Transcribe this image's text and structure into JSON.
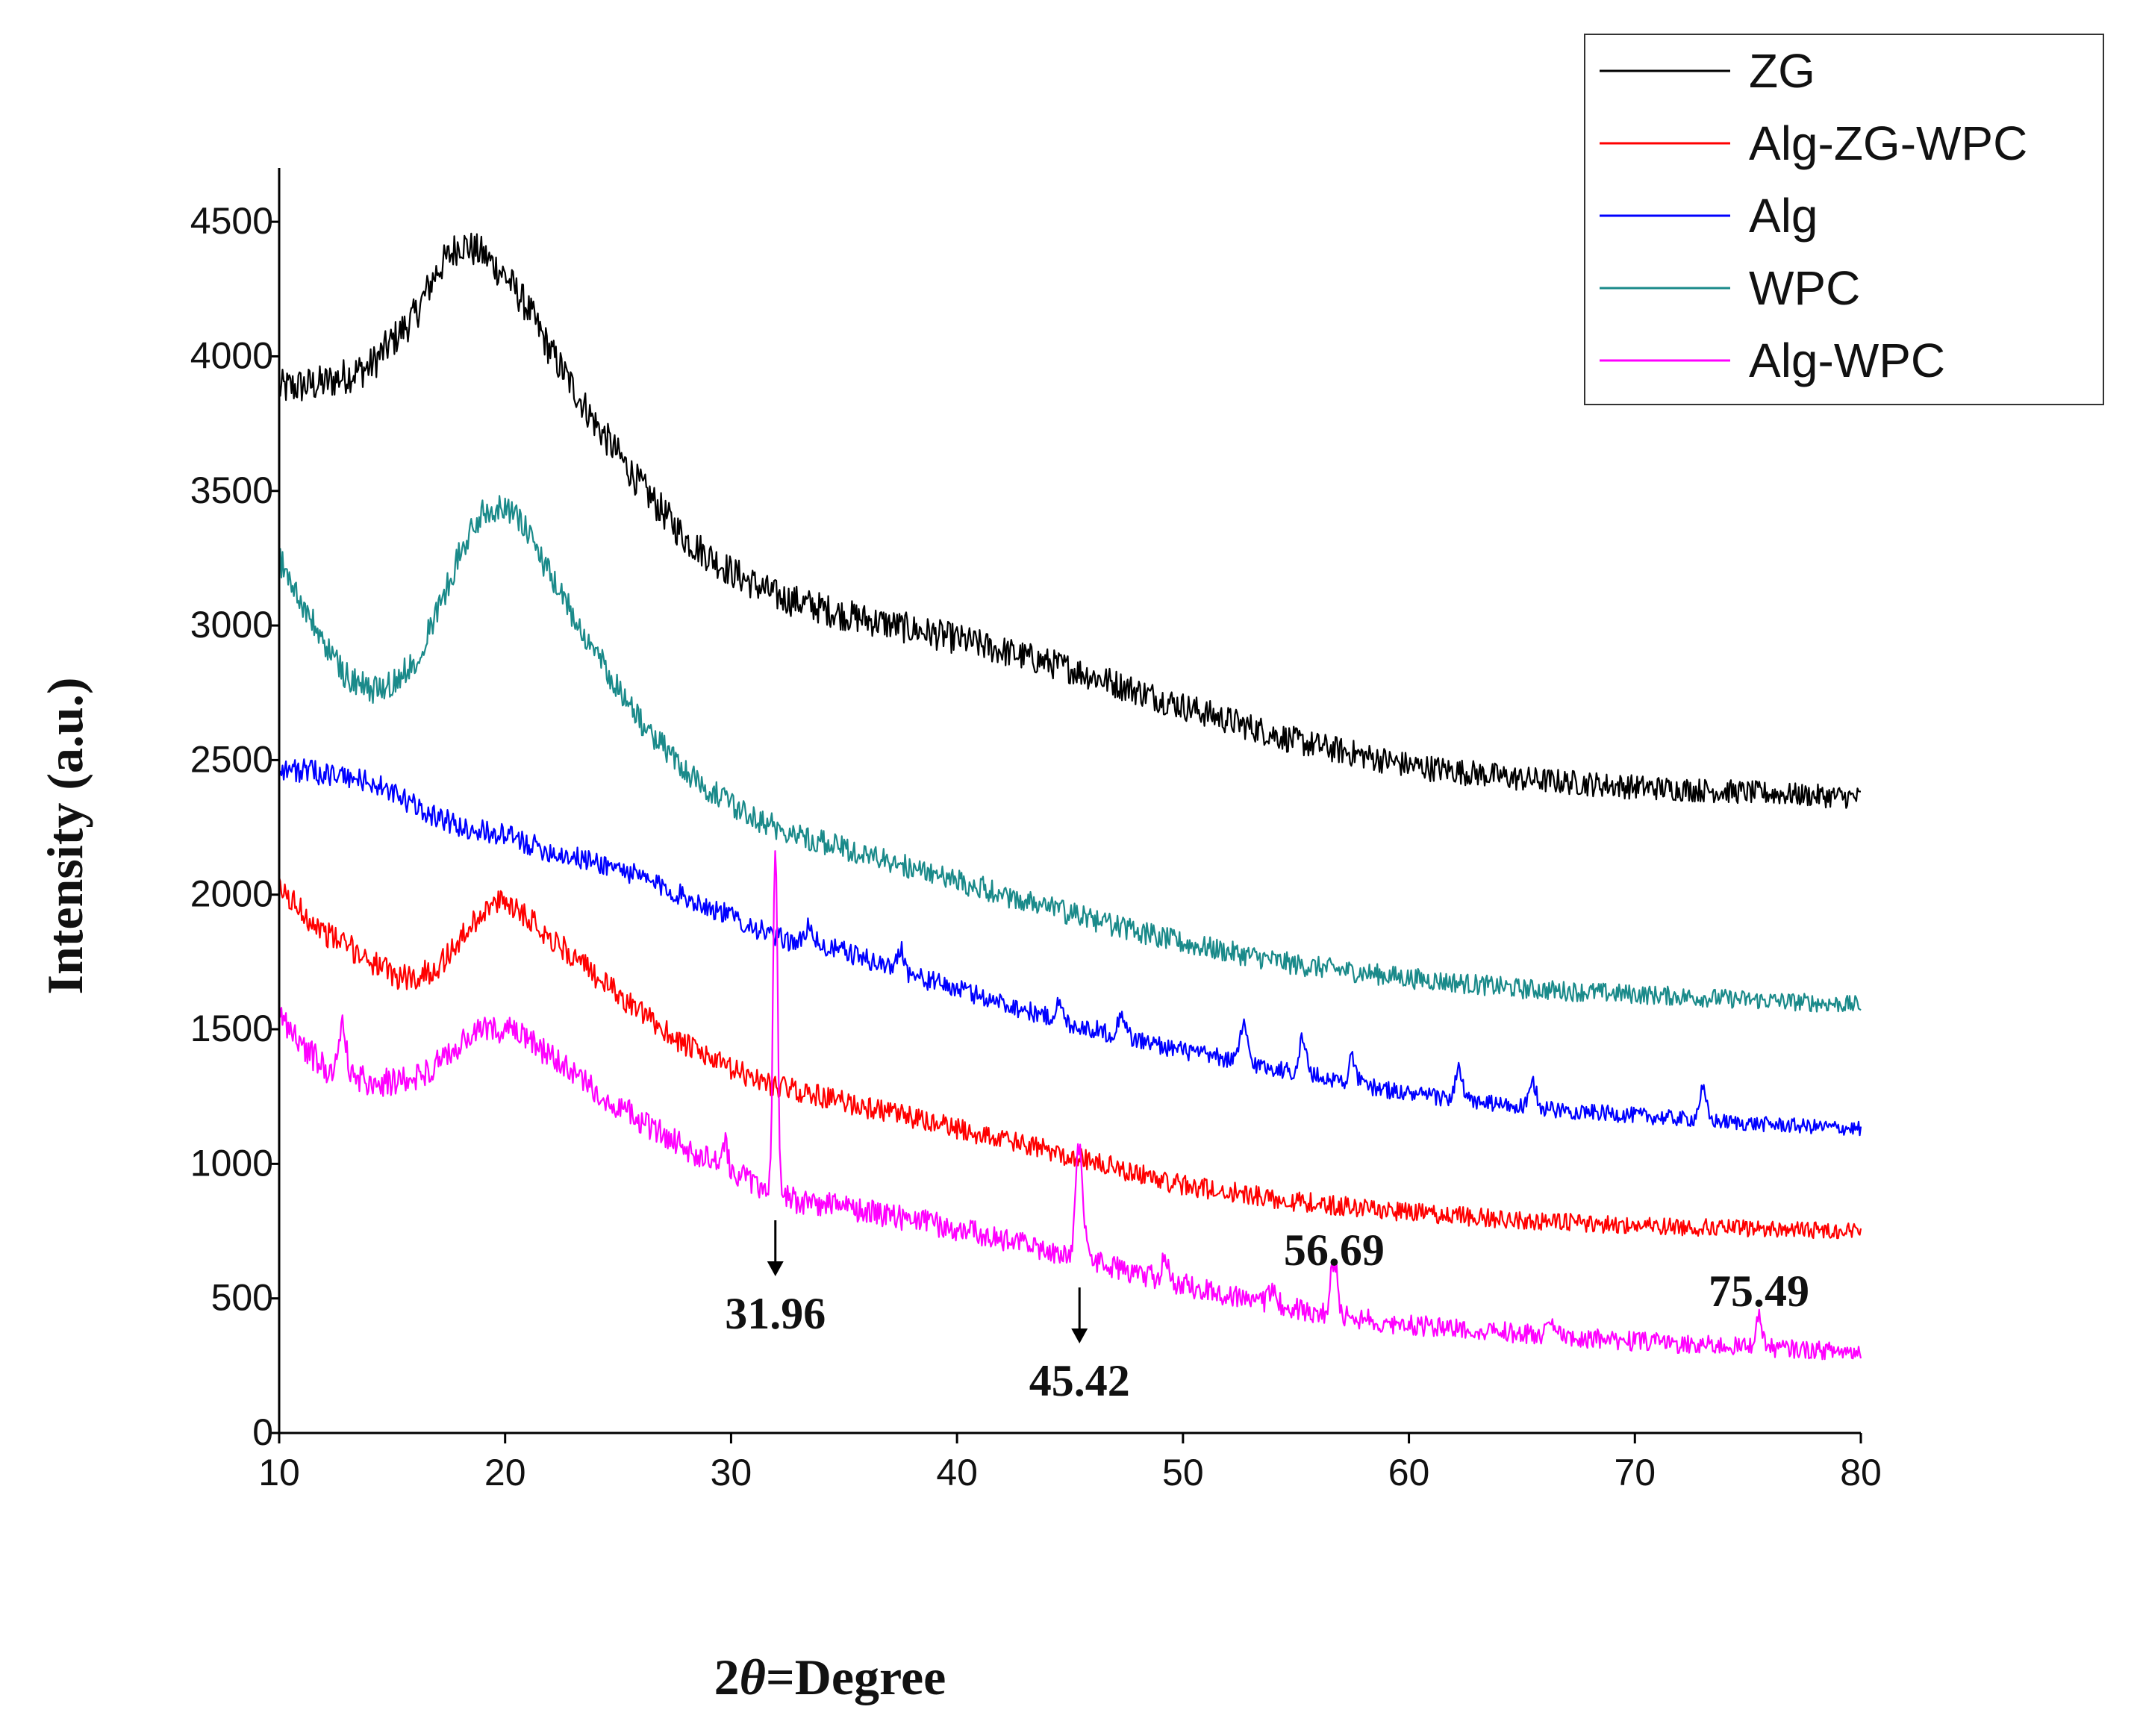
{
  "chart_data": {
    "type": "line",
    "title": "",
    "xlabel_prefix": "2",
    "xlabel_symbol": "θ",
    "xlabel_suffix": "=Degree",
    "ylabel": "Intensity (a.u.)",
    "xlim": [
      10,
      80
    ],
    "ylim": [
      0,
      4700
    ],
    "xticks": [
      10,
      20,
      30,
      40,
      50,
      60,
      70,
      80
    ],
    "yticks": [
      0,
      500,
      1000,
      1500,
      2000,
      2500,
      3000,
      3500,
      4000,
      4500
    ],
    "grid": false,
    "legend_position": "top-right",
    "series": [
      {
        "name": "ZG",
        "color": "#000000",
        "noise": 70,
        "x": [
          10,
          12,
          14,
          16,
          17,
          18,
          19,
          20,
          21,
          22,
          24,
          26,
          28,
          30,
          32,
          35,
          40,
          45,
          50,
          55,
          60,
          65,
          70,
          75,
          80
        ],
        "y": [
          3880,
          3900,
          3960,
          4150,
          4320,
          4420,
          4380,
          4300,
          4180,
          4020,
          3750,
          3520,
          3320,
          3200,
          3110,
          3040,
          2950,
          2840,
          2700,
          2570,
          2480,
          2430,
          2400,
          2380,
          2360
        ]
      },
      {
        "name": "Alg-ZG-WPC",
        "color": "#ff0000",
        "noise": 50,
        "x": [
          10,
          12,
          14,
          15,
          16,
          17,
          18,
          19,
          20,
          21,
          22,
          24,
          26,
          28,
          30,
          32,
          35,
          40,
          45,
          50,
          55,
          60,
          65,
          70,
          75,
          80
        ],
        "y": [
          2020,
          1860,
          1760,
          1700,
          1690,
          1730,
          1830,
          1940,
          1980,
          1920,
          1840,
          1700,
          1560,
          1440,
          1350,
          1290,
          1230,
          1130,
          1030,
          920,
          860,
          820,
          790,
          770,
          760,
          750
        ]
      },
      {
        "name": "Alg",
        "color": "#0000ff",
        "noise": 45,
        "x": [
          10,
          12,
          14,
          16,
          18,
          20,
          22,
          25,
          28,
          30,
          32,
          35,
          38,
          40,
          45,
          50,
          55,
          60,
          65,
          70,
          75,
          80
        ],
        "y": [
          2470,
          2450,
          2420,
          2330,
          2250,
          2220,
          2160,
          2100,
          1990,
          1920,
          1840,
          1790,
          1700,
          1650,
          1520,
          1420,
          1340,
          1260,
          1210,
          1180,
          1150,
          1130
        ],
        "peaks": [
          [
            33.5,
            80
          ],
          [
            37.5,
            90
          ],
          [
            44.5,
            60
          ],
          [
            47.3,
            90
          ],
          [
            52.7,
            140
          ],
          [
            55.3,
            130
          ],
          [
            57.5,
            90
          ],
          [
            62.2,
            110
          ],
          [
            65.5,
            90
          ],
          [
            73,
            110
          ]
        ]
      },
      {
        "name": "WPC",
        "color": "#1a8a8a",
        "noise": 55,
        "x": [
          10,
          11,
          12,
          13,
          14,
          15,
          16,
          17,
          18,
          19,
          20,
          21,
          22,
          24,
          26,
          28,
          30,
          32,
          35,
          40,
          45,
          50,
          55,
          60,
          65,
          70,
          75,
          80
        ],
        "y": [
          3250,
          3080,
          2930,
          2810,
          2760,
          2780,
          2870,
          3050,
          3270,
          3420,
          3450,
          3350,
          3180,
          2900,
          2640,
          2460,
          2330,
          2250,
          2170,
          2050,
          1930,
          1820,
          1740,
          1690,
          1650,
          1630,
          1610,
          1590
        ]
      },
      {
        "name": "Alg-WPC",
        "color": "#ff00ff",
        "noise": 55,
        "x": [
          10,
          11,
          12,
          13,
          14,
          15,
          16,
          17,
          18,
          19,
          20,
          21,
          22,
          24,
          26,
          28,
          30,
          31,
          33,
          35,
          40,
          45,
          50,
          55,
          60,
          65,
          70,
          75,
          80
        ],
        "y": [
          1560,
          1440,
          1360,
          1320,
          1310,
          1300,
          1320,
          1370,
          1440,
          1500,
          1500,
          1460,
          1400,
          1270,
          1160,
          1060,
          970,
          930,
          860,
          840,
          760,
          660,
          550,
          460,
          400,
          370,
          340,
          320,
          300
        ],
        "peaks": [
          [
            12.8,
            200
          ],
          [
            29.7,
            90
          ],
          [
            31.96,
            1270
          ],
          [
            45.42,
            420
          ],
          [
            49.2,
            70
          ],
          [
            54,
            60
          ],
          [
            56.69,
            200
          ],
          [
            66.2,
            40
          ],
          [
            75.49,
            110
          ]
        ]
      }
    ],
    "annotations": [
      {
        "label": "31.96",
        "x": 31.96,
        "arrow": true
      },
      {
        "label": "45.42",
        "x": 45.42,
        "arrow": true
      },
      {
        "label": "56.69",
        "x": 56.69,
        "arrow": false
      },
      {
        "label": "75.49",
        "x": 75.49,
        "arrow": false
      }
    ]
  }
}
